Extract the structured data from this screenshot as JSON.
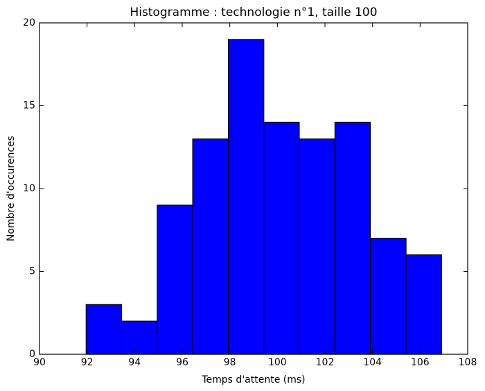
{
  "chart_data": {
    "type": "histogram",
    "title": "Histogramme : technologie n°1, taille 100",
    "x_label": "Temps d'attente (ms)",
    "y_label": "Nombre d'occurences",
    "bins": [
      91.96,
      93.45,
      94.95,
      96.44,
      97.94,
      99.43,
      100.92,
      102.42,
      103.91,
      105.41,
      106.9
    ],
    "counts": [
      3,
      2,
      9,
      13,
      19,
      14,
      13,
      14,
      7,
      6
    ],
    "color": "#0000ff",
    "xlim": [
      90,
      108
    ],
    "xticks": [
      90,
      92,
      94,
      96,
      98,
      100,
      102,
      104,
      106,
      108
    ],
    "ylim": [
      0,
      20
    ],
    "yticks": [
      0,
      5,
      10,
      15,
      20
    ]
  }
}
